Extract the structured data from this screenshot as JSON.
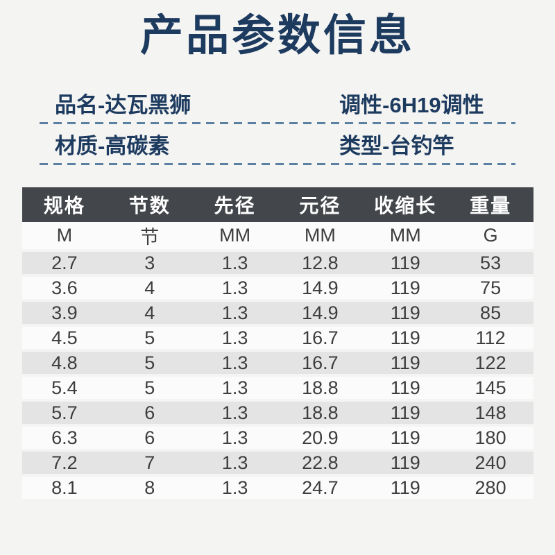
{
  "page": {
    "title": "产品参数信息"
  },
  "info": {
    "rows": [
      {
        "left": "品名-达瓦黑狮",
        "right": "调性-6H19调性"
      },
      {
        "left": "材质-高碳素",
        "right": "类型-台钓竿"
      }
    ]
  },
  "table": {
    "headers": [
      "规格",
      "节数",
      "先径",
      "元径",
      "收缩长",
      "重量"
    ],
    "units": [
      "M",
      "节",
      "MM",
      "MM",
      "MM",
      "G"
    ],
    "rows": [
      [
        "2.7",
        "3",
        "1.3",
        "12.8",
        "119",
        "53"
      ],
      [
        "3.6",
        "4",
        "1.3",
        "14.9",
        "119",
        "75"
      ],
      [
        "3.9",
        "4",
        "1.3",
        "14.9",
        "119",
        "85"
      ],
      [
        "4.5",
        "5",
        "1.3",
        "16.7",
        "119",
        "112"
      ],
      [
        "4.8",
        "5",
        "1.3",
        "16.7",
        "119",
        "122"
      ],
      [
        "5.4",
        "5",
        "1.3",
        "18.8",
        "119",
        "145"
      ],
      [
        "5.7",
        "6",
        "1.3",
        "18.8",
        "119",
        "148"
      ],
      [
        "6.3",
        "6",
        "1.3",
        "20.9",
        "119",
        "180"
      ],
      [
        "7.2",
        "7",
        "1.3",
        "22.8",
        "119",
        "240"
      ],
      [
        "8.1",
        "8",
        "1.3",
        "24.7",
        "119",
        "280"
      ]
    ]
  },
  "colors": {
    "page_bg": "#f4f4f2",
    "title_text": "#1d3a5f",
    "info_text": "#1d3a5f",
    "dashed_line": "#5c80a1",
    "header_bg": "#43464b",
    "header_text": "#ffffff",
    "row_alt_bg": "#e4e4e4",
    "row_bg": "#fbfbfb",
    "data_text": "#3d3d3d"
  }
}
